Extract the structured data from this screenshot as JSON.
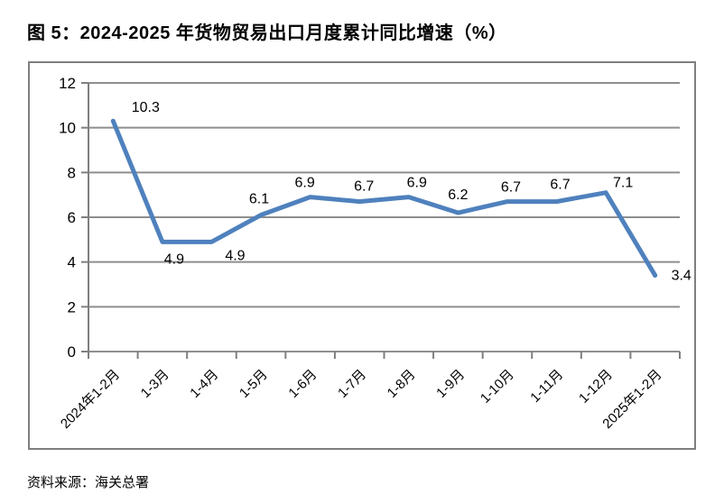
{
  "title": "图 5：2024-2025 年货物贸易出口月度累计同比增速（%）",
  "source": "资料来源：海关总署",
  "colors": {
    "line": "#4F81BD",
    "gridline": "#8e8e8e",
    "axis": "#7f7f7f",
    "text": "#000000"
  },
  "chart_data": {
    "type": "line",
    "title": "图 5：2024-2025 年货物贸易出口月度累计同比增速（%）",
    "categories": [
      "2024年1-2月",
      "1-3月",
      "1-4月",
      "1-5月",
      "1-6月",
      "1-7月",
      "1-8月",
      "1-9月",
      "1-10月",
      "1-11月",
      "1-12月",
      "2025年1-2月"
    ],
    "values": [
      10.3,
      4.9,
      4.9,
      6.1,
      6.9,
      6.7,
      6.9,
      6.2,
      6.7,
      6.7,
      7.1,
      3.4
    ],
    "data_labels": [
      "10.3",
      "4.9",
      "4.9",
      "6.1",
      "6.9",
      "6.7",
      "6.9",
      "6.2",
      "6.7",
      "6.7",
      "7.1",
      "3.4"
    ],
    "xlabel": "",
    "ylabel": "",
    "ylim": [
      0,
      12
    ],
    "yticks": [
      0,
      2,
      4,
      6,
      8,
      10,
      12
    ],
    "grid": true,
    "legend": "none",
    "markers": false
  }
}
